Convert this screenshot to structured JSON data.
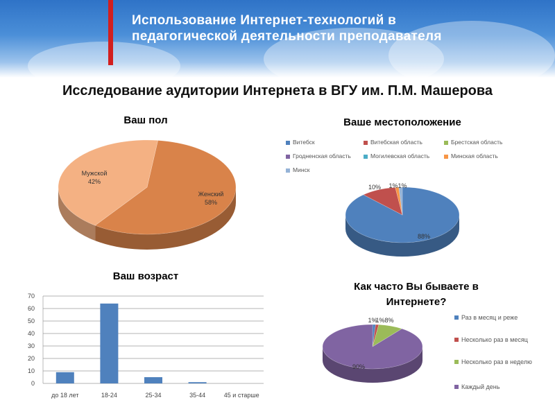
{
  "header": {
    "title": "Использование Интернет-технологий в педагогической деятельности преподавателя"
  },
  "page_title": "Исследование аудитории Интернета в ВГУ им. П.М. Машерова",
  "colors": {
    "red_bar": "#d21f1f",
    "banner": "#3c82d0"
  },
  "chart_data": [
    {
      "type": "pie",
      "title": "Ваш пол",
      "slices": [
        {
          "label": "Женский",
          "value": 58,
          "pct_label": "58%",
          "color": "#d9834a"
        },
        {
          "label": "Мужской",
          "value": 42,
          "pct_label": "42%",
          "color": "#f4b183"
        }
      ]
    },
    {
      "type": "pie",
      "title": "Ваше местоположение",
      "legend_position": "top",
      "slices": [
        {
          "label": "Витебск",
          "value": 88,
          "pct_label": "88%",
          "color": "#4f81bd"
        },
        {
          "label": "Витебская область",
          "value": 10,
          "pct_label": "10%",
          "color": "#c0504d"
        },
        {
          "label": "Брестская область",
          "value": 0,
          "pct_label": "",
          "color": "#9bbb59"
        },
        {
          "label": "Гродненская область",
          "value": 0,
          "pct_label": "",
          "color": "#8064a2"
        },
        {
          "label": "Могилевская область",
          "value": 0,
          "pct_label": "",
          "color": "#4bacc6"
        },
        {
          "label": "Минская область",
          "value": 1,
          "pct_label": "1%",
          "color": "#f79646"
        },
        {
          "label": "Минск",
          "value": 1,
          "pct_label": "1%",
          "color": "#95b3d7"
        }
      ]
    },
    {
      "type": "bar",
      "title": "Ваш возраст",
      "categories": [
        "до 18 лет",
        "18-24",
        "25-34",
        "35-44",
        "45 и старше"
      ],
      "values": [
        9,
        64,
        5,
        1,
        0
      ],
      "ylim": [
        0,
        70
      ],
      "yticks": [
        0,
        10,
        20,
        30,
        40,
        50,
        60,
        70
      ],
      "grid": true,
      "color": "#4f81bd"
    },
    {
      "type": "pie",
      "title": "Как часто Вы бываете в Интернете?",
      "legend_position": "right",
      "slices": [
        {
          "label": "Раз в месяц и реже",
          "value": 1,
          "pct_label": "1%",
          "color": "#4f81bd"
        },
        {
          "label": "Несколько раз в месяц",
          "value": 1,
          "pct_label": "1%",
          "color": "#c0504d"
        },
        {
          "label": "Несколько раз в неделю",
          "value": 8,
          "pct_label": "8%",
          "color": "#9bbb59"
        },
        {
          "label": "Каждый день",
          "value": 90,
          "pct_label": "90%",
          "color": "#8064a2"
        }
      ]
    }
  ]
}
